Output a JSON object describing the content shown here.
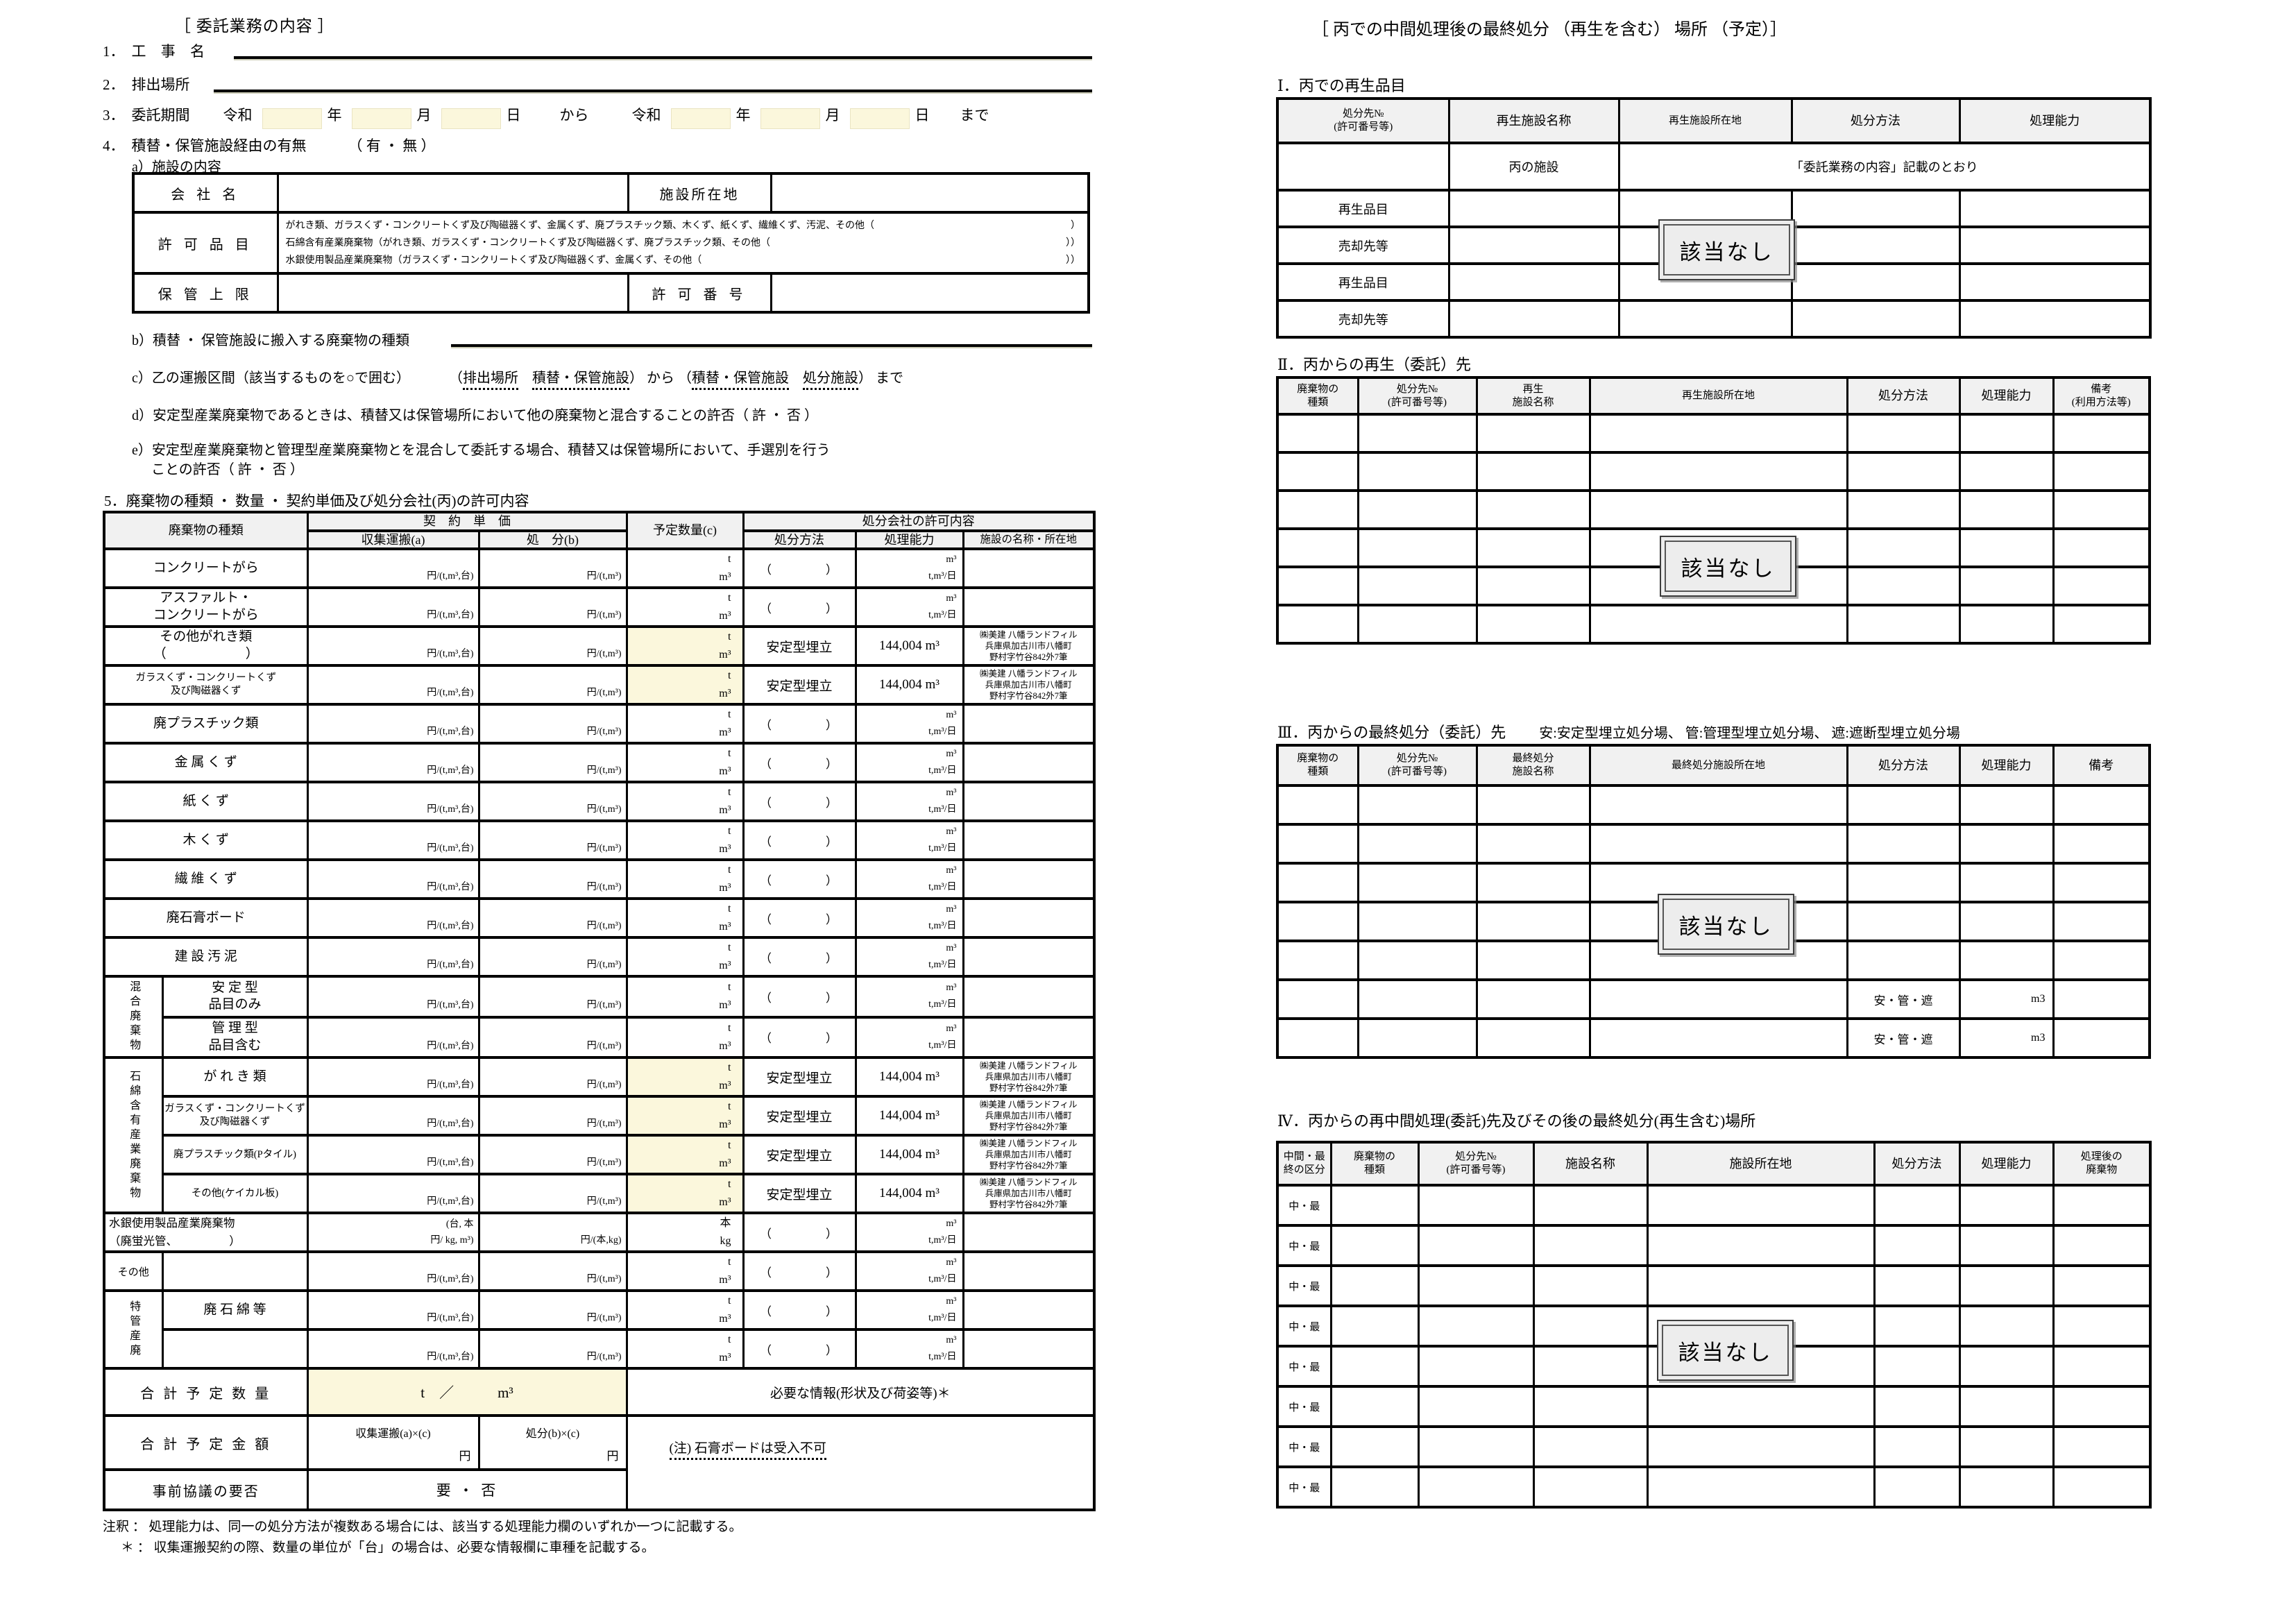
{
  "left": {
    "title": "［ 委託業務の内容 ］",
    "item1": {
      "no": "1．",
      "label": "工 事 名"
    },
    "item2": {
      "no": "2．",
      "label": "排出場所"
    },
    "item3": {
      "no": "3．",
      "label": "委託期間",
      "era1": "令和",
      "year1": "年",
      "month1": "月",
      "day1": "日",
      "kara": "から",
      "era2": "令和",
      "year2": "年",
      "month2": "月",
      "day2": "日",
      "made": "まで"
    },
    "item4": {
      "no": "4．",
      "label": "積替・保管施設経由の有無",
      "choice": "（ 有 ・ 無 ）",
      "sub_a": "a）施設の内容"
    },
    "facility_table": {
      "company_label": "会 社 名",
      "location_label": "施設所在地",
      "permit_label": "許 可 品 目",
      "permit_lines": [
        {
          "text": "がれき類、ガラスくず・コンクリートくず及び陶磁器くず、金属くず、廃プラスチック類、木くず、紙くず、繊維くず、汚泥、その他（",
          "close": "）"
        },
        {
          "text": "石綿含有産業廃棄物（がれき類、ガラスくず・コンクリートくず及び陶磁器くず、廃プラスチック類、その他（",
          "close": "））"
        },
        {
          "text": "水銀使用製品産業廃棄物（ガラスくず・コンクリートくず及び陶磁器くず、金属くず、その他（",
          "close": "））"
        }
      ],
      "storage_label": "保 管 上 限",
      "permit_no_label": "許 可 番 号"
    },
    "item4b": "b）積替 ・ 保管施設に搬入する廃棄物の種類",
    "item4c": {
      "label": "c）乙の運搬区間（該当するものを○で囲む）",
      "p1": "（",
      "u1": "排出場所",
      "mid1": "　",
      "u2": "積替・保管施設",
      "p2": "）",
      "kara": " から ",
      "p3": "（",
      "u3": "積替・保管施設",
      "mid2": "　",
      "u4": "処分施設",
      "p4": "）",
      "made": " まで"
    },
    "item4d": "d）安定型産業廃棄物であるときは、積替又は保管場所において他の廃棄物と混合することの許否（ 許 ・ 否 ）",
    "item4e_line1": "e）安定型産業廃棄物と管理型産業廃棄物とを混合して委託する場合、積替又は保管場所において、手選別を行う",
    "item4e_line2": "ことの許否（ 許 ・ 否 ）",
    "heading5": "5．廃棄物の種類 ・ 数量 ・ 契約単価及び処分会社(丙)の許可内容",
    "main_table": {
      "headers": {
        "waste_type": "廃棄物の種類",
        "contract_unit_price": "契　約　単　価",
        "collect": "収集運搬(a)",
        "disposal": "処　分(b)",
        "planned_qty": "予定数量(c)",
        "permit_info": "処分会社の許可内容",
        "method": "処分方法",
        "capacity": "処理能力",
        "facility": "施設の名称・所在地"
      },
      "defaults": {
        "collect_unit": "円/(t,m³,台)",
        "disposal_unit": "円/(t,m³)",
        "qty_units": "t\nm³",
        "method_blank": "（　　　　）",
        "capacity_blank": "m³\nt,m³/日",
        "method_filled": "安定型埋立",
        "capacity_filled": "144,004 m³",
        "facility_filled": "㈱美建 八幡ランドフィル\n兵庫県加古川市八幡町\n野村字竹谷842外7筆"
      },
      "rows": [
        {
          "label": "コンクリートがら"
        },
        {
          "label": "アスファルト・\nコンクリートがら"
        },
        {
          "label": "その他がれき類\n（　　　　　　）",
          "filled": true,
          "ff": true
        },
        {
          "label": "ガラスくず・コンクリートくず\n及び陶磁器くず",
          "small": true,
          "filled": true,
          "ff": true
        },
        {
          "label": "廃プラスチック類"
        },
        {
          "label": "金 属 く ず"
        },
        {
          "label": "紙 く ず"
        },
        {
          "label": "木 く ず"
        },
        {
          "label": "繊 維 く ず"
        },
        {
          "label": "廃石膏ボード"
        },
        {
          "label": "建 設 汚 泥"
        },
        {
          "group": {
            "text": "混合廃棄物",
            "span": 2
          },
          "label": "安 定 型\n品目のみ"
        },
        {
          "label": "管 理 型\n品目含む"
        },
        {
          "group": {
            "text": "石綿含有産業廃棄物",
            "span": 4
          },
          "label": "が れ き 類",
          "filled": true,
          "ff": true
        },
        {
          "label": "ガラスくず・コンクリートくず\n及び陶磁器くず",
          "small": true,
          "filled": true,
          "ff": true
        },
        {
          "label": "廃プラスチック類(Pタイル)",
          "small": true,
          "filled": true,
          "ff": true
        },
        {
          "label": "その他(ケイカル板)",
          "small": true,
          "filled": true,
          "ff": true
        },
        {
          "full": true,
          "label": "水銀使用製品産業廃棄物\n（廃蛍光管、　　　　　）",
          "a": "(台, 本\n円/ kg, m³)",
          "b": "円/(本,kg)",
          "q": "本\nkg"
        },
        {
          "group": {
            "text": "その他",
            "span": 1,
            "horiz": true
          },
          "label": ""
        },
        {
          "group": {
            "text": "特管産廃",
            "span": 2
          },
          "label": "廃 石 綿 等"
        },
        {
          "label": ""
        }
      ],
      "footer": {
        "total_qty_label": "合 計 予 定 数 量",
        "total_qty_value": "t　／　　　m³",
        "info_label": "必要な情報(形状及び荷姿等)＊",
        "total_amt_label": "合 計 予 定 金 額",
        "amt_a_top": "収集運搬(a)×(c)",
        "amt_a_unit": "円",
        "amt_b_top": "処分(b)×(c)",
        "amt_b_unit": "円",
        "gypsum_note": "(注) 石膏ボードは受入不可",
        "consult_label": "事前協議の要否",
        "consult_value": "要 ・ 否"
      }
    },
    "notes": [
      "注釈 ： 処理能力は、同一の処分方法が複数ある場合には、該当する処理能力欄のいずれか一つに記載する。",
      "＊ ： 収集運搬契約の際、数量の単位が「台」の場合は、必要な情報欄に車種を記載する。"
    ]
  },
  "right": {
    "title": "［ 丙での中間処理後の最終処分 （再生を含む） 場所 （予定）］",
    "stamp": "該当なし",
    "s1": {
      "heading": "Ⅰ．丙での再生品目",
      "cols": [
        "処分先№\n(許可番号等)",
        "再生施設名称",
        "再生施設所在地",
        "処分方法",
        "処理能力"
      ],
      "facility": "丙の施設",
      "as_described": "「委託業務の内容」記載のとおり",
      "row_labels": [
        "再生品目",
        "売却先等",
        "再生品目",
        "売却先等"
      ]
    },
    "s2": {
      "heading": "Ⅱ．丙からの再生（委託）先",
      "cols": [
        "廃棄物の\n種類",
        "処分先№\n(許可番号等)",
        "再生\n施設名称",
        "再生施設所在地",
        "処分方法",
        "処理能力",
        "備考\n(利用方法等)"
      ],
      "row_count": 6
    },
    "s3": {
      "heading": "Ⅲ．丙からの最終処分（委託）先",
      "legend": "安:安定型埋立処分場、 管:管理型埋立処分場、 遮:遮断型埋立処分場",
      "cols": [
        "廃棄物の\n種類",
        "処分先№\n(許可番号等)",
        "最終処分\n施設名称",
        "最終処分施設所在地",
        "処分方法",
        "処理能力",
        "備考"
      ],
      "row_count": 7,
      "special_method": "安・管・遮",
      "special_capacity": "m3",
      "special_rows": [
        5,
        6
      ]
    },
    "s4": {
      "heading": "Ⅳ．丙からの再中間処理(委託)先及びその後の最終処分(再生含む)場所",
      "cols": [
        "中間・最\n終の区分",
        "廃棄物の\n種類",
        "処分先№\n(許可番号等)",
        "施設名称",
        "施設所在地",
        "処分方法",
        "処理能力",
        "処理後の\n廃棄物"
      ],
      "row_count": 8,
      "row_label": "中・最"
    }
  }
}
